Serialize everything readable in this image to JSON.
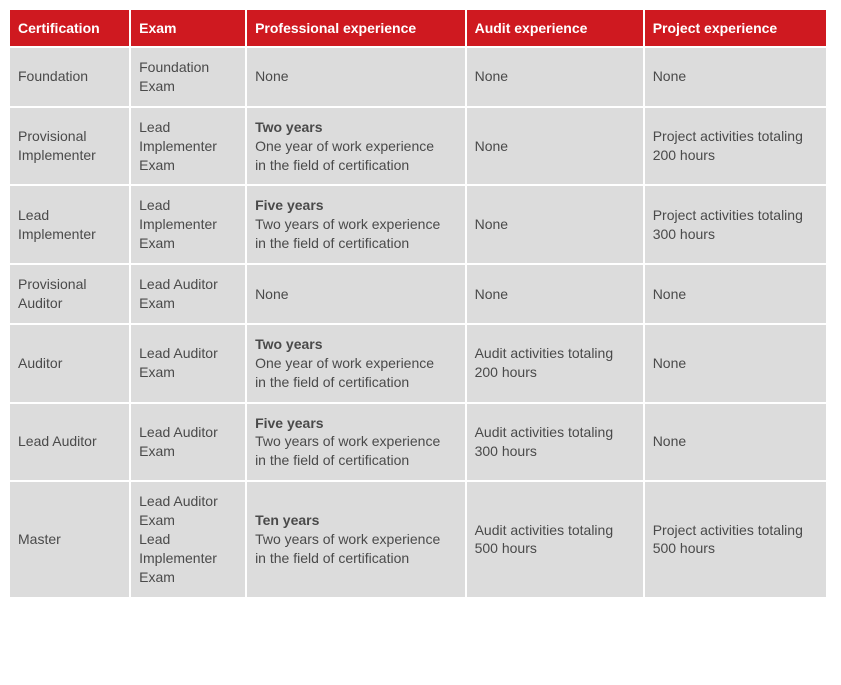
{
  "table": {
    "header_bg": "#cf1920",
    "header_color": "#ffffff",
    "cell_bg": "#dcdcdc",
    "cell_color": "#4a4a4a",
    "columns": [
      "Certification",
      "Exam",
      "Professional experience",
      "Audit experience",
      "Project experience"
    ],
    "rows": [
      {
        "certification": "Foundation",
        "exam": "Foundation Exam",
        "prof_bold": "",
        "prof_rest": "None",
        "audit": "None",
        "project": "None"
      },
      {
        "certification": "Provisional Implementer",
        "exam": "Lead Implementer Exam",
        "prof_bold": "Two years",
        "prof_rest": "One year of work experience\nin the field of certification",
        "audit": "None",
        "project": "Project activities totaling\n200 hours"
      },
      {
        "certification": "Lead Implementer",
        "exam": "Lead Implementer Exam",
        "prof_bold": "Five years",
        "prof_rest": "Two years of work experience\nin the field of certification",
        "audit": "None",
        "project": "Project activities totaling\n300 hours"
      },
      {
        "certification": "Provisional Auditor",
        "exam": "Lead Auditor Exam",
        "prof_bold": "",
        "prof_rest": "None",
        "audit": "None",
        "project": "None"
      },
      {
        "certification": "Auditor",
        "exam": "Lead Auditor Exam",
        "prof_bold": "Two years",
        "prof_rest": "One year of work experience\nin the field of certification",
        "audit": "Audit activities totaling\n200 hours",
        "project": "None"
      },
      {
        "certification": "Lead Auditor",
        "exam": "Lead Auditor Exam",
        "prof_bold": "Five years",
        "prof_rest": "Two years of work experience\nin the field of certification",
        "audit": "Audit activities totaling\n300 hours",
        "project": "None"
      },
      {
        "certification": "Master",
        "exam": "Lead Auditor Exam\nLead Implementer Exam",
        "prof_bold": "Ten years",
        "prof_rest": "Two years of work experience\nin the field of certification",
        "audit": "Audit activities totaling\n500 hours",
        "project": "Project activities totaling\n500 hours"
      }
    ]
  }
}
